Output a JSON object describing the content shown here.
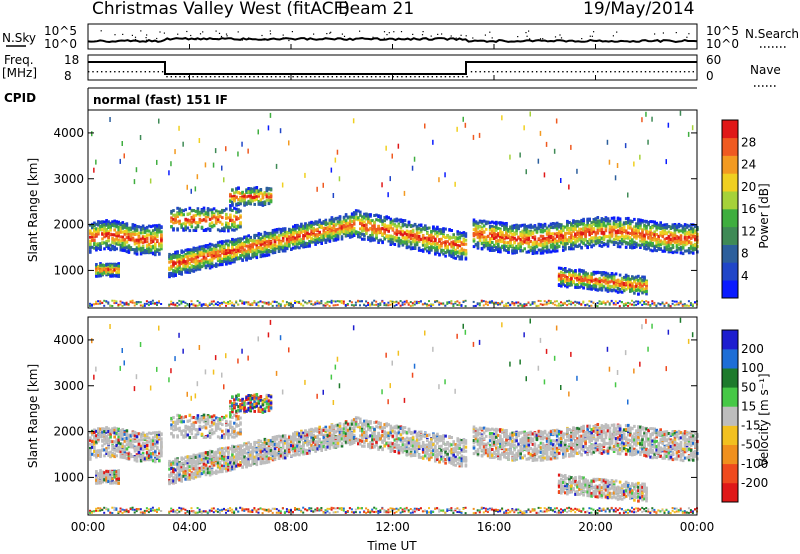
{
  "header": {
    "station": "Christmas Valley West (fitACF)",
    "beam": "Beam 21",
    "date": "19/May/2014"
  },
  "status_panel": {
    "nsky_label": "N.Sky",
    "nsky_ticks": [
      "10^5",
      "10^0"
    ],
    "nsearch_label": "N.Search",
    "nsearch_ticks": [
      "10^5",
      "10^0"
    ],
    "freq_label": "Freq.",
    "freq_unit": "[MHz]",
    "freq_ticks": [
      "18",
      "8"
    ],
    "nave_label": "Nave",
    "nave_ticks": [
      "60",
      "0"
    ],
    "cpid_label": "CPID",
    "cpid_value": "normal (fast) 151 IF"
  },
  "x_axis": {
    "label": "Time UT",
    "ticks": [
      "00:00",
      "04:00",
      "08:00",
      "12:00",
      "16:00",
      "20:00",
      "00:00"
    ]
  },
  "colors": {
    "power": [
      "#0a1bff",
      "#2046c8",
      "#2c5f9c",
      "#3f8a56",
      "#3fae3f",
      "#a6d23a",
      "#f0d020",
      "#f39a20",
      "#ef5a20",
      "#e01818"
    ],
    "velocity": [
      "#1e1ecf",
      "#1e6ed6",
      "#1e7a2c",
      "#46c846",
      "#bdbdbd",
      "#f2c020",
      "#f0901e",
      "#ef4a1e",
      "#e01818"
    ]
  },
  "chart_data": [
    {
      "type": "scatter",
      "title": "Power",
      "xlabel": "Time UT",
      "ylabel": "Slant Range [km]",
      "xlim": [
        0,
        24
      ],
      "ylim": [
        180,
        4500
      ],
      "yticks": [
        1000,
        2000,
        3000,
        4000
      ],
      "colorbar_label": "Power [dB]",
      "colorbar_ticks": [
        "28",
        "24",
        "20",
        "16",
        "12",
        "8",
        "4"
      ],
      "colorbar_range": [
        0,
        30
      ],
      "bands": [
        {
          "t": [
            0,
            2.9
          ],
          "range": [
            1550,
            2300
          ],
          "core": 1700
        },
        {
          "t": [
            3.1,
            10.5
          ],
          "range": [
            1100,
            2300
          ],
          "core": "rising 1100->2000"
        },
        {
          "t": [
            10.5,
            14.9
          ],
          "range": [
            1200,
            2200
          ],
          "core": "falling"
        },
        {
          "t": [
            15.1,
            24
          ],
          "range": [
            1500,
            2300
          ],
          "core": 1700
        },
        {
          "t": [
            0.2,
            1.2
          ],
          "range": [
            850,
            1100
          ],
          "core": 1000
        },
        {
          "t": [
            18.5,
            22
          ],
          "range": [
            500,
            1000
          ],
          "core": 700
        },
        {
          "t": [
            5.5,
            7.2
          ],
          "range": [
            2400,
            2800
          ],
          "core": 2600
        }
      ]
    },
    {
      "type": "scatter",
      "title": "Velocity",
      "xlabel": "Time UT",
      "ylabel": "Slant Range [km]",
      "xlim": [
        0,
        24
      ],
      "ylim": [
        180,
        4500
      ],
      "yticks": [
        1000,
        2000,
        3000,
        4000
      ],
      "colorbar_label": "Velocity [m s⁻¹]",
      "colorbar_ticks": [
        "200",
        "100",
        "50",
        "15",
        "-15",
        "-50",
        "-100",
        "-200"
      ],
      "colorbar_range": [
        -250,
        250
      ]
    }
  ]
}
